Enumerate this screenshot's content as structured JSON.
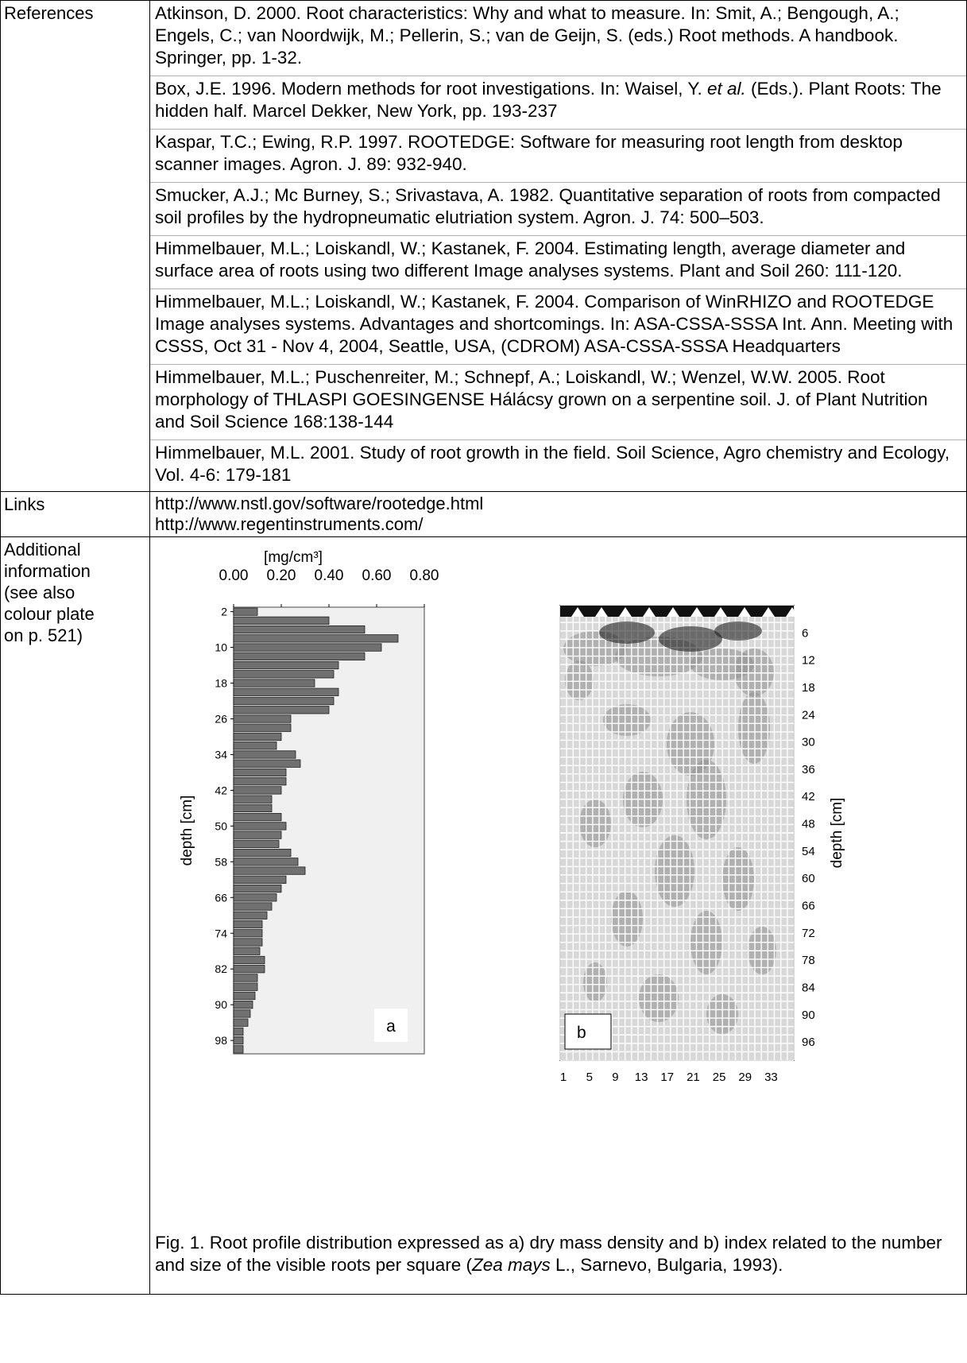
{
  "labels": {
    "references": "References",
    "links": "Links",
    "additional": [
      "Additional",
      "information",
      "(see also",
      "colour plate",
      "on p. 521)"
    ]
  },
  "references": [
    {
      "parts": [
        "Atkinson, D. 2000. Root characteristics: Why and what to measure. In: Smit, A.; Bengough, A.; Engels, C.; van Noordwijk, M.; Pellerin, S.; van de Geijn, S. (eds.) Root methods. A handbook. Springer, pp. 1-32."
      ]
    },
    {
      "parts": [
        "Box, J.E. 1996. Modern methods for root investigations. In: Waisel, Y. ",
        "et al.",
        " (Eds.). Plant Roots: The hidden half. Marcel Dekker, New York, pp. 193-237"
      ]
    },
    {
      "parts": [
        "Kaspar, T.C.; Ewing, R.P. 1997. ROOTEDGE: Software for measuring root length from desktop scanner images. Agron. J. 89: 932-940."
      ]
    },
    {
      "parts": [
        "Smucker, A.J.; Mc Burney, S.; Srivastava, A. 1982. Quantitative separation of roots from compacted soil profiles by the hydropneumatic elutriation system. Agron. J. 74: 500–503."
      ]
    },
    {
      "parts": [
        "Himmelbauer, M.L.; Loiskandl, W.; Kastanek, F. 2004. Estimating length, average diameter and surface area of roots using two different Image analyses systems. Plant and Soil 260: 111-120."
      ]
    },
    {
      "parts": [
        "Himmelbauer, M.L.; Loiskandl, W.; Kastanek, F. 2004. Comparison of WinRHIZO and ROOTEDGE Image analyses systems. Advantages and shortcomings. In: ASA-CSSA-SSSA Int. Ann. Meeting with CSSS, Oct 31 - Nov 4, 2004, Seattle, USA, (CDROM) ASA-CSSA-SSSA Headquarters"
      ]
    },
    {
      "parts": [
        "Himmelbauer, M.L.; Puschenreiter, M.; Schnepf, A.; Loiskandl, W.; Wenzel, W.W. 2005. Root morphology of THLASPI GOESINGENSE Hálácsy grown on a serpentine soil. J. of Plant Nutrition and Soil Science 168:138-144"
      ]
    },
    {
      "parts": [
        "Himmelbauer, M.L. 2001. Study of root growth in the field. Soil Science, Agro chemistry and Ecology, Vol. 4-6: 179-181"
      ]
    }
  ],
  "links": [
    "http://www.nstl.gov/software/rootedge.html",
    "http://www.regentinstruments.com/"
  ],
  "figure": {
    "caption_parts": [
      "Fig. 1. Root profile distribution expressed as a) dry mass density and b) index related to the number and size of the visible roots per square (",
      "Zea mays",
      " L., Sarnevo, Bulgaria, 1993)."
    ],
    "panel_b_letter": "b"
  },
  "chart_data": [
    {
      "type": "bar",
      "orientation": "horizontal",
      "panel_label": "a",
      "unit_label": "[mg/cm³]",
      "ylabel": "depth [cm]",
      "x_ticks": [
        "0.00",
        "0.20",
        "0.40",
        "0.60",
        "0.80"
      ],
      "xlim": [
        0,
        0.8
      ],
      "y_tick_labels": [
        "2",
        "10",
        "18",
        "26",
        "34",
        "42",
        "50",
        "58",
        "66",
        "74",
        "82",
        "90",
        "98"
      ],
      "depths": [
        2,
        4,
        6,
        8,
        10,
        12,
        14,
        16,
        18,
        20,
        22,
        24,
        26,
        28,
        30,
        32,
        34,
        36,
        38,
        40,
        42,
        44,
        46,
        48,
        50,
        52,
        54,
        56,
        58,
        60,
        62,
        64,
        66,
        68,
        70,
        72,
        74,
        76,
        78,
        80,
        82,
        84,
        86,
        88,
        90,
        92,
        94,
        96,
        98,
        100
      ],
      "values": [
        0.1,
        0.4,
        0.55,
        0.69,
        0.62,
        0.55,
        0.44,
        0.42,
        0.34,
        0.44,
        0.42,
        0.4,
        0.24,
        0.24,
        0.2,
        0.18,
        0.26,
        0.28,
        0.22,
        0.22,
        0.2,
        0.16,
        0.16,
        0.2,
        0.22,
        0.2,
        0.19,
        0.24,
        0.27,
        0.3,
        0.22,
        0.2,
        0.18,
        0.16,
        0.14,
        0.12,
        0.12,
        0.12,
        0.11,
        0.13,
        0.13,
        0.1,
        0.1,
        0.09,
        0.08,
        0.07,
        0.06,
        0.04,
        0.04,
        0.04
      ]
    },
    {
      "type": "heatmap",
      "panel_label": "b",
      "ylabel": "depth [cm]",
      "x_tick_labels": [
        "1",
        "5",
        "9",
        "13",
        "17",
        "21",
        "25",
        "29",
        "33"
      ],
      "y_tick_labels": [
        "6",
        "12",
        "18",
        "24",
        "30",
        "36",
        "42",
        "48",
        "54",
        "60",
        "66",
        "72",
        "78",
        "84",
        "90",
        "96"
      ]
    }
  ]
}
